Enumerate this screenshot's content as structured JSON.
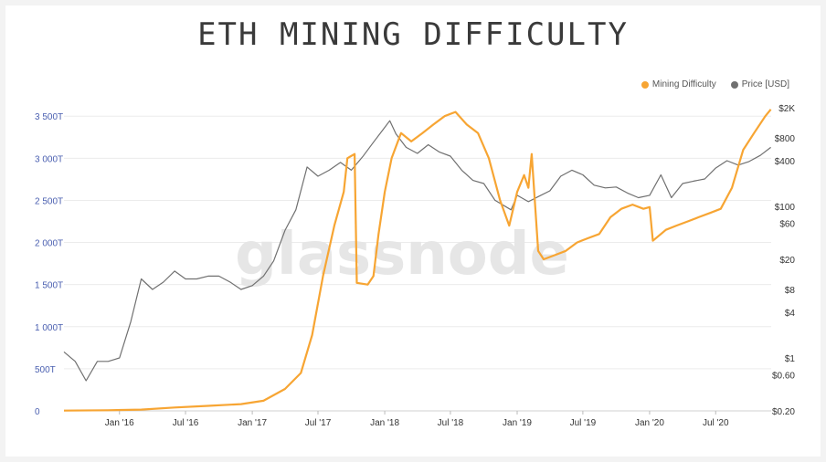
{
  "chart_data": {
    "type": "line",
    "title": "ETH MINING DIFFICULTY",
    "watermark": "glassnode",
    "x_range": [
      "2015-08-01",
      "2020-12-01"
    ],
    "y_left": {
      "min": 0,
      "max": 3600,
      "unit": "T",
      "ticks": [
        {
          "v": 0,
          "label": "0"
        },
        {
          "v": 500,
          "label": "500T"
        },
        {
          "v": 1000,
          "label": "1 000T"
        },
        {
          "v": 1500,
          "label": "1 500T"
        },
        {
          "v": 2000,
          "label": "2 000T"
        },
        {
          "v": 2500,
          "label": "2 500T"
        },
        {
          "v": 3000,
          "label": "3 000T"
        },
        {
          "v": 3500,
          "label": "3 500T"
        }
      ]
    },
    "y_right": {
      "scale": "log",
      "min": 0.2,
      "max": 2000,
      "ticks": [
        {
          "v": 0.2,
          "label": "$0.20"
        },
        {
          "v": 0.6,
          "label": "$0.60"
        },
        {
          "v": 1,
          "label": "$1"
        },
        {
          "v": 4,
          "label": "$4"
        },
        {
          "v": 8,
          "label": "$8"
        },
        {
          "v": 20,
          "label": "$20"
        },
        {
          "v": 60,
          "label": "$60"
        },
        {
          "v": 100,
          "label": "$100"
        },
        {
          "v": 400,
          "label": "$400"
        },
        {
          "v": 800,
          "label": "$800"
        },
        {
          "v": 2000,
          "label": "$2K"
        }
      ]
    },
    "x_ticks": [
      {
        "date": "2016-01-01",
        "label": "Jan '16"
      },
      {
        "date": "2016-07-01",
        "label": "Jul '16"
      },
      {
        "date": "2017-01-01",
        "label": "Jan '17"
      },
      {
        "date": "2017-07-01",
        "label": "Jul '17"
      },
      {
        "date": "2018-01-01",
        "label": "Jan '18"
      },
      {
        "date": "2018-07-01",
        "label": "Jul '18"
      },
      {
        "date": "2019-01-01",
        "label": "Jan '19"
      },
      {
        "date": "2019-07-01",
        "label": "Jul '19"
      },
      {
        "date": "2020-01-01",
        "label": "Jan '20"
      },
      {
        "date": "2020-07-01",
        "label": "Jul '20"
      }
    ],
    "legend_position": "top-right",
    "series": [
      {
        "name": "Mining Difficulty",
        "axis": "left",
        "color": "#f7a533",
        "points": [
          [
            "2015-08-01",
            3
          ],
          [
            "2015-12-01",
            8
          ],
          [
            "2016-03-01",
            15
          ],
          [
            "2016-06-01",
            40
          ],
          [
            "2016-09-01",
            60
          ],
          [
            "2016-12-01",
            80
          ],
          [
            "2017-02-01",
            120
          ],
          [
            "2017-04-01",
            260
          ],
          [
            "2017-05-15",
            450
          ],
          [
            "2017-06-15",
            900
          ],
          [
            "2017-07-15",
            1600
          ],
          [
            "2017-08-15",
            2200
          ],
          [
            "2017-09-10",
            2600
          ],
          [
            "2017-09-20",
            3000
          ],
          [
            "2017-10-10",
            3050
          ],
          [
            "2017-10-16",
            1520
          ],
          [
            "2017-11-15",
            1500
          ],
          [
            "2017-12-01",
            1600
          ],
          [
            "2017-12-15",
            2100
          ],
          [
            "2018-01-01",
            2600
          ],
          [
            "2018-01-20",
            3000
          ],
          [
            "2018-02-15",
            3300
          ],
          [
            "2018-03-15",
            3200
          ],
          [
            "2018-04-15",
            3300
          ],
          [
            "2018-05-15",
            3400
          ],
          [
            "2018-06-15",
            3500
          ],
          [
            "2018-07-15",
            3550
          ],
          [
            "2018-08-15",
            3400
          ],
          [
            "2018-09-15",
            3300
          ],
          [
            "2018-10-15",
            3000
          ],
          [
            "2018-11-15",
            2500
          ],
          [
            "2018-12-10",
            2200
          ],
          [
            "2019-01-01",
            2600
          ],
          [
            "2019-01-20",
            2800
          ],
          [
            "2019-02-01",
            2650
          ],
          [
            "2019-02-10",
            3050
          ],
          [
            "2019-02-28",
            1900
          ],
          [
            "2019-03-15",
            1800
          ],
          [
            "2019-04-15",
            1850
          ],
          [
            "2019-05-15",
            1900
          ],
          [
            "2019-06-15",
            2000
          ],
          [
            "2019-07-15",
            2050
          ],
          [
            "2019-08-15",
            2100
          ],
          [
            "2019-09-15",
            2300
          ],
          [
            "2019-10-15",
            2400
          ],
          [
            "2019-11-15",
            2450
          ],
          [
            "2019-12-15",
            2400
          ],
          [
            "2020-01-01",
            2420
          ],
          [
            "2020-01-10",
            2020
          ],
          [
            "2020-02-15",
            2150
          ],
          [
            "2020-03-15",
            2200
          ],
          [
            "2020-04-15",
            2250
          ],
          [
            "2020-05-15",
            2300
          ],
          [
            "2020-06-15",
            2350
          ],
          [
            "2020-07-15",
            2400
          ],
          [
            "2020-08-15",
            2650
          ],
          [
            "2020-09-15",
            3100
          ],
          [
            "2020-10-15",
            3300
          ],
          [
            "2020-11-15",
            3500
          ],
          [
            "2020-11-30",
            3580
          ]
        ]
      },
      {
        "name": "Price [USD]",
        "axis": "right",
        "color": "#707070",
        "points": [
          [
            "2015-08-01",
            1.2
          ],
          [
            "2015-09-01",
            0.9
          ],
          [
            "2015-10-01",
            0.5
          ],
          [
            "2015-11-01",
            0.9
          ],
          [
            "2015-12-01",
            0.9
          ],
          [
            "2016-01-01",
            1.0
          ],
          [
            "2016-02-01",
            3
          ],
          [
            "2016-03-01",
            11
          ],
          [
            "2016-04-01",
            8
          ],
          [
            "2016-05-01",
            10
          ],
          [
            "2016-06-01",
            14
          ],
          [
            "2016-07-01",
            11
          ],
          [
            "2016-08-01",
            11
          ],
          [
            "2016-09-01",
            12
          ],
          [
            "2016-10-01",
            12
          ],
          [
            "2016-11-01",
            10
          ],
          [
            "2016-12-01",
            8
          ],
          [
            "2017-01-01",
            9
          ],
          [
            "2017-02-01",
            12
          ],
          [
            "2017-03-01",
            19
          ],
          [
            "2017-04-01",
            48
          ],
          [
            "2017-05-01",
            90
          ],
          [
            "2017-06-01",
            330
          ],
          [
            "2017-07-01",
            250
          ],
          [
            "2017-08-01",
            300
          ],
          [
            "2017-09-01",
            380
          ],
          [
            "2017-10-01",
            300
          ],
          [
            "2017-11-01",
            450
          ],
          [
            "2017-12-01",
            700
          ],
          [
            "2018-01-01",
            1100
          ],
          [
            "2018-01-15",
            1350
          ],
          [
            "2018-02-01",
            900
          ],
          [
            "2018-03-01",
            600
          ],
          [
            "2018-04-01",
            500
          ],
          [
            "2018-05-01",
            650
          ],
          [
            "2018-06-01",
            520
          ],
          [
            "2018-07-01",
            460
          ],
          [
            "2018-08-01",
            300
          ],
          [
            "2018-09-01",
            220
          ],
          [
            "2018-10-01",
            200
          ],
          [
            "2018-11-01",
            120
          ],
          [
            "2018-12-15",
            90
          ],
          [
            "2019-01-01",
            140
          ],
          [
            "2019-02-01",
            115
          ],
          [
            "2019-03-01",
            135
          ],
          [
            "2019-04-01",
            160
          ],
          [
            "2019-05-01",
            250
          ],
          [
            "2019-06-01",
            300
          ],
          [
            "2019-07-01",
            260
          ],
          [
            "2019-08-01",
            190
          ],
          [
            "2019-09-01",
            175
          ],
          [
            "2019-10-01",
            180
          ],
          [
            "2019-11-01",
            150
          ],
          [
            "2019-12-01",
            130
          ],
          [
            "2020-01-01",
            140
          ],
          [
            "2020-02-01",
            260
          ],
          [
            "2020-03-01",
            130
          ],
          [
            "2020-04-01",
            200
          ],
          [
            "2020-05-01",
            215
          ],
          [
            "2020-06-01",
            230
          ],
          [
            "2020-07-01",
            320
          ],
          [
            "2020-08-01",
            400
          ],
          [
            "2020-09-01",
            350
          ],
          [
            "2020-10-01",
            390
          ],
          [
            "2020-11-01",
            470
          ],
          [
            "2020-11-30",
            600
          ]
        ]
      }
    ]
  }
}
